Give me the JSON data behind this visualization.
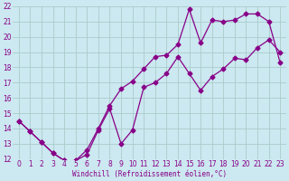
{
  "xlabel": "Windchill (Refroidissement éolien,°C)",
  "bg_color": "#cce8f0",
  "grid_color": "#aacccc",
  "line_color": "#880088",
  "xlim": [
    -0.5,
    23.5
  ],
  "ylim": [
    12,
    22
  ],
  "xticks": [
    0,
    1,
    2,
    3,
    4,
    5,
    6,
    7,
    8,
    9,
    10,
    11,
    12,
    13,
    14,
    15,
    16,
    17,
    18,
    19,
    20,
    21,
    22,
    23
  ],
  "yticks": [
    12,
    13,
    14,
    15,
    16,
    17,
    18,
    19,
    20,
    21,
    22
  ],
  "line1_x": [
    0,
    1,
    2,
    3,
    4,
    5,
    6,
    7,
    8,
    9,
    10,
    11,
    12,
    13,
    14,
    15,
    16,
    17,
    18,
    19,
    20,
    21,
    22,
    23
  ],
  "line1_y": [
    14.5,
    13.8,
    13.1,
    12.4,
    11.9,
    11.9,
    12.3,
    13.9,
    15.3,
    13.0,
    13.9,
    16.7,
    17.0,
    17.6,
    18.7,
    17.6,
    16.5,
    17.4,
    17.9,
    18.6,
    18.5,
    19.3,
    19.8,
    19.0
  ],
  "line2_x": [
    0,
    1,
    2,
    3,
    4,
    5,
    6,
    7,
    8,
    9,
    10,
    11,
    12,
    13,
    14,
    15,
    16,
    17,
    18,
    19,
    20,
    21,
    22,
    23
  ],
  "line2_y": [
    14.5,
    13.8,
    13.1,
    12.4,
    11.9,
    11.9,
    12.6,
    14.0,
    15.5,
    16.6,
    17.1,
    17.9,
    18.7,
    18.8,
    19.5,
    21.8,
    19.6,
    21.1,
    21.0,
    21.1,
    21.5,
    21.5,
    21.0,
    18.3
  ],
  "fontsize_tick": 5.5,
  "fontsize_xlabel": 5.5,
  "marker_size": 2.5,
  "linewidth": 0.9
}
